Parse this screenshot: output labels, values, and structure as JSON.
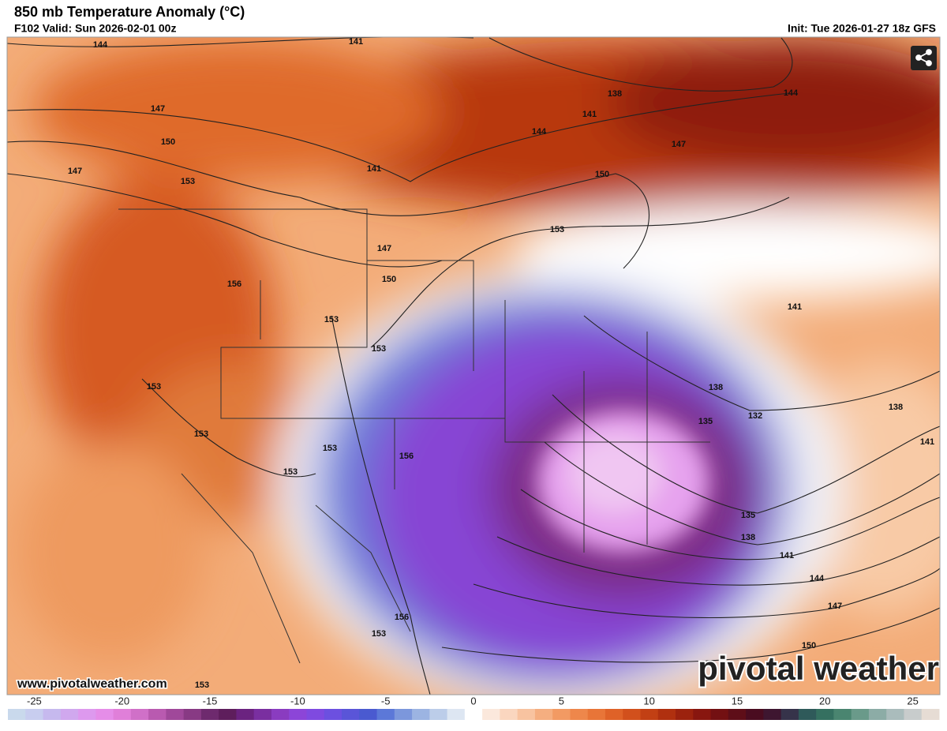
{
  "header": {
    "title": "850 mb Temperature Anomaly (°C)",
    "valid": "F102 Valid: Sun 2026-02-01 00z",
    "init": "Init: Tue 2026-01-27 18z GFS"
  },
  "map": {
    "contour_labels": [
      144,
      141,
      147,
      150,
      147,
      153,
      141,
      138,
      141,
      144,
      147,
      144,
      150,
      153,
      147,
      150,
      156,
      153,
      153,
      141,
      153,
      153,
      153,
      156,
      153,
      138,
      135,
      132,
      138,
      141,
      135,
      138,
      141,
      144,
      147,
      150,
      156,
      153,
      153
    ],
    "site_url": "www.pivotalweather.com",
    "logo": "pivotal weather"
  },
  "colorbar": {
    "range": [
      -26.5,
      26.5
    ],
    "ticks": [
      -25,
      -20,
      -15,
      -10,
      -5,
      0,
      5,
      10,
      15,
      20,
      25
    ],
    "colors": [
      "#c9d9ec",
      "#c8cdef",
      "#c6b9ee",
      "#d0a8ee",
      "#dd99ee",
      "#e58de8",
      "#e07fd9",
      "#d070c8",
      "#b95ab0",
      "#a0489a",
      "#883a84",
      "#6e2a6e",
      "#5e1e5c",
      "#6b2380",
      "#7a2fa0",
      "#8a3cc0",
      "#8c45d8",
      "#7f4ae0",
      "#6c50e0",
      "#5a55d8",
      "#4a5ad0",
      "#5c78d8",
      "#7c97dc",
      "#9cb4e2",
      "#bccde9",
      "#dde6f2",
      "#ffffff",
      "#fbe8dc",
      "#fad6bf",
      "#f8c3a0",
      "#f5ae80",
      "#f29a63",
      "#ee874b",
      "#e87538",
      "#df6228",
      "#d2501c",
      "#c24014",
      "#b0300f",
      "#9c220e",
      "#88160f",
      "#731012",
      "#5e0e18",
      "#4a0c20",
      "#3e1630",
      "#36334a",
      "#2f5a5a",
      "#357060",
      "#4a8570",
      "#6a9a8a",
      "#8caca6",
      "#aabcbc",
      "#c8cccc",
      "#e6dcd4"
    ]
  }
}
